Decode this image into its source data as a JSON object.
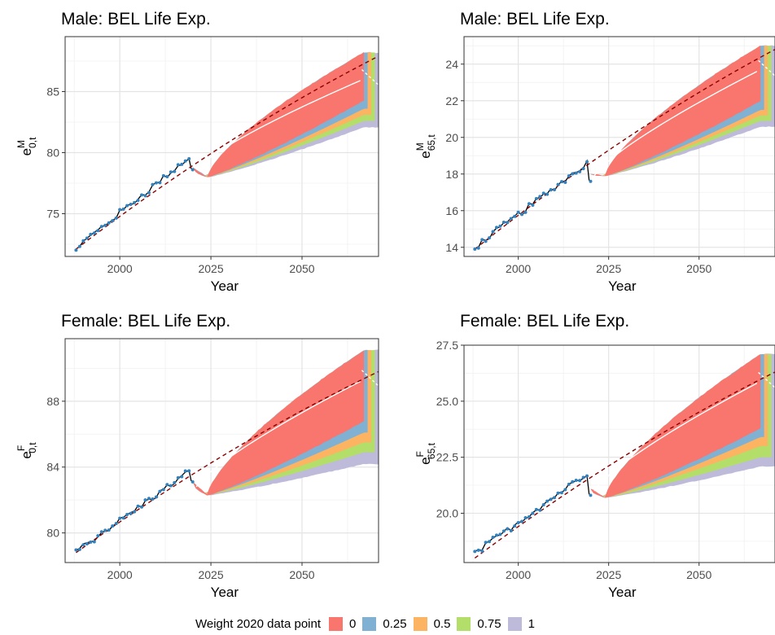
{
  "legend": {
    "title": "Weight 2020 data point",
    "items": [
      {
        "label": "0",
        "color": "#F8766D"
      },
      {
        "label": "0.25",
        "color": "#80B1D3"
      },
      {
        "label": "0.5",
        "color": "#FDB462"
      },
      {
        "label": "0.75",
        "color": "#B3DE69"
      },
      {
        "label": "1",
        "color": "#BEBADA"
      }
    ]
  },
  "chart_data": [
    {
      "type": "area",
      "title": "Male: BEL Life Exp.",
      "xlabel": "Year",
      "ylabel": {
        "base": "e",
        "sup": "M",
        "sub": "0,t"
      },
      "x_ticks": [
        2000,
        2025,
        2050
      ],
      "y_ticks": [
        75,
        80,
        85
      ],
      "xlim": [
        1985,
        2071
      ],
      "ylim": [
        71.5,
        89.5
      ],
      "grid": true,
      "observed": {
        "start_year": 1988,
        "start": 72.2,
        "end_year": 2019,
        "end": 79.6,
        "last_point": 78.6
      },
      "trend": {
        "start_year": 1988,
        "start": 72.1,
        "end_year": 2071,
        "end": 87.9
      },
      "median_path": {
        "start_year": 2021,
        "start": 78.6,
        "end_year": 2066,
        "end": 85.9
      },
      "fan": {
        "start_year": 2020,
        "start_value": 78.8,
        "mid_year": 2024,
        "mid_value": 78.0,
        "end_year": 2067,
        "end_color_year": 2071,
        "upper_end": 88.2,
        "weight_lower_ends": [
          84.3,
          83.6,
          83.1,
          82.6,
          82.1
        ]
      }
    },
    {
      "type": "area",
      "title": "Male: BEL Life Exp.",
      "xlabel": "Year",
      "ylabel": {
        "base": "e",
        "sup": "M",
        "sub": "65,t"
      },
      "x_ticks": [
        2000,
        2025,
        2050
      ],
      "y_ticks": [
        14,
        16,
        18,
        20,
        22,
        24
      ],
      "xlim": [
        1985,
        2071
      ],
      "ylim": [
        13.5,
        25.5
      ],
      "grid": true,
      "observed": {
        "start_year": 1988,
        "start": 14.0,
        "end_year": 2019,
        "end": 18.6,
        "last_point": 17.6
      },
      "trend": {
        "start_year": 1988,
        "start": 13.9,
        "end_year": 2071,
        "end": 24.8
      },
      "median_path": {
        "start_year": 2021,
        "start": 17.9,
        "end_year": 2066,
        "end": 23.6
      },
      "fan": {
        "start_year": 2020,
        "start_value": 18.0,
        "mid_year": 2024,
        "mid_value": 17.9,
        "end_year": 2067,
        "end_color_year": 2071,
        "upper_end": 25.0,
        "weight_lower_ends": [
          22.0,
          21.5,
          21.2,
          20.9,
          20.6
        ]
      }
    },
    {
      "type": "area",
      "title": "Female: BEL Life Exp.",
      "xlabel": "Year",
      "ylabel": {
        "base": "e",
        "sup": "F",
        "sub": "0,t"
      },
      "x_ticks": [
        2000,
        2025,
        2050
      ],
      "y_ticks": [
        80,
        84,
        88
      ],
      "xlim": [
        1985,
        2071
      ],
      "ylim": [
        78.2,
        91.8
      ],
      "grid": true,
      "observed": {
        "start_year": 1988,
        "start": 78.9,
        "end_year": 2019,
        "end": 83.7,
        "last_point": 83.1
      },
      "trend": {
        "start_year": 1988,
        "start": 78.8,
        "end_year": 2071,
        "end": 89.8
      },
      "median_path": {
        "start_year": 2021,
        "start": 82.8,
        "end_year": 2066,
        "end": 89.2
      },
      "fan": {
        "start_year": 2020,
        "start_value": 83.1,
        "mid_year": 2024,
        "mid_value": 82.3,
        "end_year": 2067,
        "end_color_year": 2071,
        "upper_end": 91.1,
        "weight_lower_ends": [
          86.8,
          86.1,
          85.5,
          84.9,
          84.2
        ]
      }
    },
    {
      "type": "area",
      "title": "Female: BEL Life Exp.",
      "xlabel": "Year",
      "ylabel": {
        "base": "e",
        "sup": "F",
        "sub": "65,t"
      },
      "x_ticks": [
        2000,
        2025,
        2050
      ],
      "y_ticks": [
        20.0,
        22.5,
        25.0,
        27.5
      ],
      "xlim": [
        1985,
        2071
      ],
      "ylim": [
        17.8,
        27.5
      ],
      "grid": true,
      "observed": {
        "start_year": 1988,
        "start": 18.2,
        "end_year": 2019,
        "end": 21.8,
        "last_point": 20.8
      },
      "trend": {
        "start_year": 1988,
        "start": 18.0,
        "end_year": 2071,
        "end": 26.3
      },
      "median_path": {
        "start_year": 2021,
        "start": 21.0,
        "end_year": 2066,
        "end": 25.8
      },
      "fan": {
        "start_year": 2020,
        "start_value": 21.1,
        "mid_year": 2024,
        "mid_value": 20.7,
        "end_year": 2067,
        "end_color_year": 2071,
        "upper_end": 27.1,
        "weight_lower_ends": [
          23.8,
          23.4,
          23.0,
          22.5,
          22.1
        ]
      }
    }
  ]
}
